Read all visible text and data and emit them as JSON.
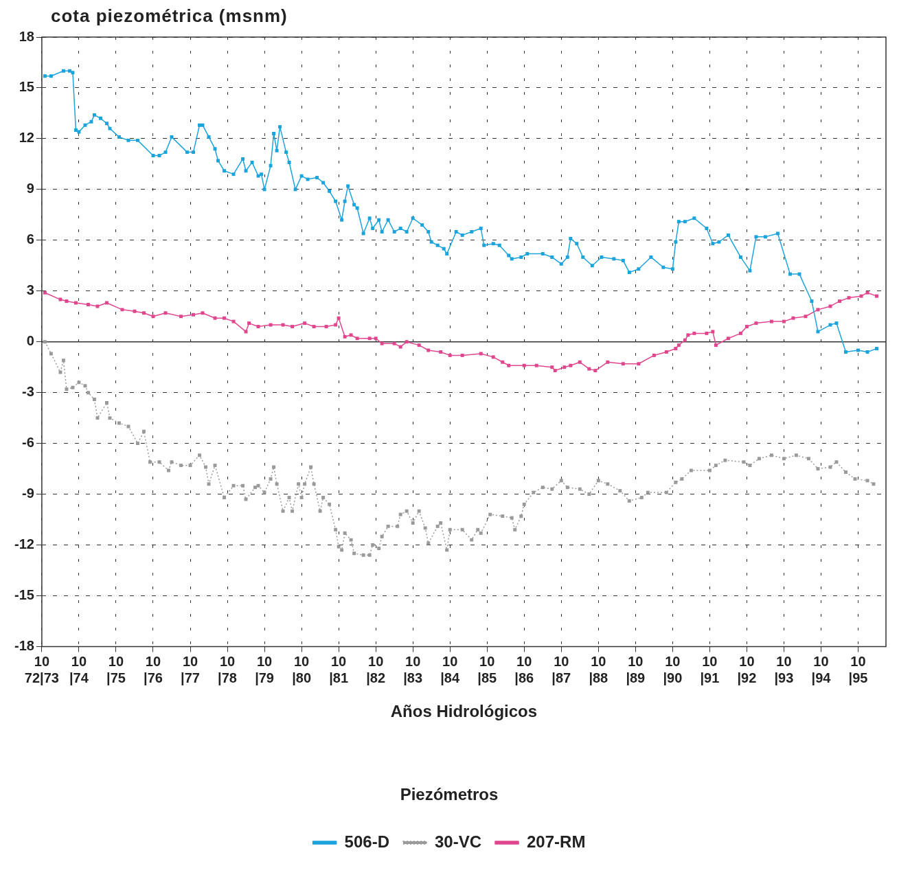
{
  "chart_data": {
    "type": "line",
    "ylabel": "cota piezométrica (msnm)",
    "xlabel": "Años Hidrológicos",
    "legend_title": "Piezómetros",
    "legend": "bottom",
    "grid": true,
    "marker": "square",
    "line_style": "solid",
    "xlim": [
      "1972-10",
      "1995-07"
    ],
    "xticks": [
      {
        "value": "1972-10",
        "label": "10\n72|73"
      },
      {
        "value": "1973-10",
        "label": "10\n|74"
      },
      {
        "value": "1974-10",
        "label": "10\n|75"
      },
      {
        "value": "1975-10",
        "label": "10\n|76"
      },
      {
        "value": "1976-10",
        "label": "10\n|77"
      },
      {
        "value": "1977-10",
        "label": "10\n|78"
      },
      {
        "value": "1978-10",
        "label": "10\n|79"
      },
      {
        "value": "1979-10",
        "label": "10\n|80"
      },
      {
        "value": "1980-10",
        "label": "10\n|81"
      },
      {
        "value": "1981-10",
        "label": "10\n|82"
      },
      {
        "value": "1982-10",
        "label": "10\n|83"
      },
      {
        "value": "1983-10",
        "label": "10\n|84"
      },
      {
        "value": "1984-10",
        "label": "10\n|85"
      },
      {
        "value": "1985-10",
        "label": "10\n|86"
      },
      {
        "value": "1986-10",
        "label": "10\n|87"
      },
      {
        "value": "1987-10",
        "label": "10\n|88"
      },
      {
        "value": "1988-10",
        "label": "10\n|89"
      },
      {
        "value": "1989-10",
        "label": "10\n|90"
      },
      {
        "value": "1990-10",
        "label": "10\n|91"
      },
      {
        "value": "1991-10",
        "label": "10\n|92"
      },
      {
        "value": "1992-10",
        "label": "10\n|93"
      },
      {
        "value": "1993-10",
        "label": "10\n|94"
      },
      {
        "value": "1994-10",
        "label": "10\n|95"
      }
    ],
    "ylim": [
      -18,
      18
    ],
    "yticks": [
      -18,
      -15,
      -12,
      -9,
      -6,
      -3,
      0,
      3,
      6,
      9,
      12,
      15,
      18
    ],
    "ref_lines": [
      {
        "axis": "y",
        "value": 0,
        "color": "#333333",
        "line_style": "solid"
      }
    ],
    "series": [
      {
        "name": "506-D",
        "color": "#1ba3dc",
        "x": [
          "1972-11",
          "1973-01",
          "1973-05",
          "1973-07",
          "1973-08",
          "1973-09",
          "1973-10",
          "1973-12",
          "1974-02",
          "1974-03",
          "1974-05",
          "1974-07",
          "1974-08",
          "1974-11",
          "1975-02",
          "1975-05",
          "1975-10",
          "1975-12",
          "1976-02",
          "1976-04",
          "1976-09",
          "1976-11",
          "1977-01",
          "1977-02",
          "1977-04",
          "1977-06",
          "1977-07",
          "1977-09",
          "1977-12",
          "1978-03",
          "1978-04",
          "1978-06",
          "1978-08",
          "1978-09",
          "1978-10",
          "1978-12",
          "1979-01",
          "1979-02",
          "1979-03",
          "1979-05",
          "1979-06",
          "1979-08",
          "1979-10",
          "1979-12",
          "1980-03",
          "1980-05",
          "1980-07",
          "1980-09",
          "1980-11",
          "1980-12",
          "1981-01",
          "1981-03",
          "1981-04",
          "1981-06",
          "1981-08",
          "1981-09",
          "1981-11",
          "1981-12",
          "1982-02",
          "1982-04",
          "1982-06",
          "1982-08",
          "1982-10",
          "1983-01",
          "1983-03",
          "1983-04",
          "1983-06",
          "1983-08",
          "1983-09",
          "1983-12",
          "1984-02",
          "1984-05",
          "1984-08",
          "1984-09",
          "1984-12",
          "1985-02",
          "1985-05",
          "1985-06",
          "1985-09",
          "1985-11",
          "1986-04",
          "1986-07",
          "1986-10",
          "1986-12",
          "1987-01",
          "1987-03",
          "1987-05",
          "1987-08",
          "1987-11",
          "1988-03",
          "1988-06",
          "1988-08",
          "1988-11",
          "1989-03",
          "1989-07",
          "1989-10",
          "1989-11",
          "1989-12",
          "1990-02",
          "1990-05",
          "1990-09",
          "1990-11",
          "1991-01",
          "1991-04",
          "1991-08",
          "1991-11",
          "1992-01",
          "1992-04",
          "1992-08",
          "1992-12",
          "1993-03",
          "1993-07",
          "1993-09",
          "1994-01",
          "1994-03",
          "1994-06",
          "1994-10",
          "1995-01",
          "1995-04"
        ],
        "values": [
          15.7,
          15.7,
          16.0,
          16.0,
          15.9,
          12.5,
          12.4,
          12.8,
          13.0,
          13.4,
          13.2,
          12.9,
          12.6,
          12.1,
          11.9,
          11.9,
          11.0,
          11.0,
          11.2,
          12.1,
          11.2,
          11.2,
          12.8,
          12.8,
          12.1,
          11.4,
          10.7,
          10.1,
          9.9,
          10.8,
          10.1,
          10.6,
          9.8,
          9.9,
          9.0,
          10.4,
          12.3,
          11.3,
          12.7,
          11.2,
          10.6,
          9.0,
          9.8,
          9.6,
          9.7,
          9.4,
          8.9,
          8.3,
          7.2,
          8.3,
          9.2,
          8.1,
          7.9,
          6.4,
          7.3,
          6.7,
          7.2,
          6.5,
          7.2,
          6.5,
          6.7,
          6.5,
          7.3,
          6.9,
          6.5,
          5.9,
          5.7,
          5.5,
          5.2,
          6.5,
          6.3,
          6.5,
          6.7,
          5.7,
          5.8,
          5.7,
          5.1,
          4.9,
          5.0,
          5.2,
          5.2,
          5.0,
          4.6,
          5.0,
          6.1,
          5.8,
          5.0,
          4.5,
          5.0,
          4.9,
          4.8,
          4.1,
          4.3,
          5.0,
          4.4,
          4.3,
          5.9,
          7.1,
          7.1,
          7.3,
          6.7,
          5.8,
          5.9,
          6.3,
          5.0,
          4.2,
          6.2,
          6.2,
          6.4,
          4.0,
          4.0,
          2.4,
          0.6,
          1.0,
          1.1,
          -0.6,
          -0.5,
          -0.6,
          -0.4
        ]
      },
      {
        "name": "30-VC",
        "color": "#9a9a9a",
        "line_style": "dotted",
        "x": [
          "1972-11",
          "1973-01",
          "1973-04",
          "1973-05",
          "1973-06",
          "1973-08",
          "1973-10",
          "1973-12",
          "1974-01",
          "1974-03",
          "1974-04",
          "1974-07",
          "1974-08",
          "1974-11",
          "1975-02",
          "1975-05",
          "1975-07",
          "1975-09",
          "1975-12",
          "1976-03",
          "1976-04",
          "1976-07",
          "1976-10",
          "1977-01",
          "1977-03",
          "1977-04",
          "1977-06",
          "1977-09",
          "1977-12",
          "1978-03",
          "1978-04",
          "1978-07",
          "1978-08",
          "1978-10",
          "1978-12",
          "1979-01",
          "1979-02",
          "1979-04",
          "1979-06",
          "1979-07",
          "1979-09",
          "1979-10",
          "1979-11",
          "1980-01",
          "1980-02",
          "1980-04",
          "1980-05",
          "1980-07",
          "1980-09",
          "1980-10",
          "1980-11",
          "1980-12",
          "1981-02",
          "1981-03",
          "1981-06",
          "1981-08",
          "1981-09",
          "1981-11",
          "1981-12",
          "1982-02",
          "1982-05",
          "1982-06",
          "1982-08",
          "1982-10",
          "1982-12",
          "1983-02",
          "1983-03",
          "1983-06",
          "1983-07",
          "1983-09",
          "1983-10",
          "1984-02",
          "1984-05",
          "1984-07",
          "1984-08",
          "1984-11",
          "1985-03",
          "1985-06",
          "1985-07",
          "1985-09",
          "1985-10",
          "1986-01",
          "1986-04",
          "1986-07",
          "1986-10",
          "1986-12",
          "1987-04",
          "1987-07",
          "1987-10",
          "1988-01",
          "1988-05",
          "1988-08",
          "1988-12",
          "1989-02",
          "1989-08",
          "1989-11",
          "1990-01",
          "1990-04",
          "1990-10",
          "1990-12",
          "1991-03",
          "1991-09",
          "1991-11",
          "1992-02",
          "1992-06",
          "1992-10",
          "1993-02",
          "1993-06",
          "1993-09",
          "1994-01",
          "1994-03",
          "1994-06",
          "1994-09",
          "1995-01",
          "1995-03"
        ],
        "values": [
          0,
          -0.7,
          -1.8,
          -1.1,
          -2.8,
          -2.7,
          -2.4,
          -2.6,
          -3.0,
          -3.4,
          -4.5,
          -3.6,
          -4.5,
          -4.8,
          -5.0,
          -6.0,
          -5.3,
          -7.1,
          -7.1,
          -7.6,
          -7.1,
          -7.3,
          -7.3,
          -6.7,
          -7.4,
          -8.4,
          -7.3,
          -9.2,
          -8.5,
          -8.5,
          -9.3,
          -8.6,
          -8.5,
          -8.9,
          -8.1,
          -7.4,
          -8.4,
          -10.0,
          -9.2,
          -10.0,
          -8.4,
          -9.2,
          -8.4,
          -7.4,
          -8.4,
          -10.0,
          -9.2,
          -9.6,
          -11.1,
          -12.1,
          -12.3,
          -11.3,
          -11.7,
          -12.5,
          -12.6,
          -12.6,
          -12.0,
          -12.2,
          -11.5,
          -10.9,
          -10.9,
          -10.2,
          -10.0,
          -10.7,
          -10.0,
          -11.0,
          -11.9,
          -10.9,
          -10.7,
          -12.3,
          -11.1,
          -11.1,
          -11.7,
          -11.1,
          -11.3,
          -10.2,
          -10.3,
          -10.4,
          -11.1,
          -10.3,
          -9.6,
          -8.9,
          -8.6,
          -8.7,
          -8.2,
          -8.6,
          -8.7,
          -9.0,
          -8.2,
          -8.4,
          -8.8,
          -9.4,
          -9.2,
          -8.9,
          -8.9,
          -8.3,
          -8.1,
          -7.6,
          -7.6,
          -7.3,
          -7.0,
          -7.1,
          -7.3,
          -6.9,
          -6.7,
          -6.9,
          -6.7,
          -6.9,
          -7.5,
          -7.4,
          -7.1,
          -7.7,
          -8.1,
          -8.2,
          -8.4
        ]
      },
      {
        "name": "207-RM",
        "color": "#e0468e",
        "x": [
          "1972-11",
          "1973-04",
          "1973-06",
          "1973-09",
          "1974-01",
          "1974-04",
          "1974-07",
          "1974-12",
          "1975-04",
          "1975-07",
          "1975-10",
          "1976-02",
          "1976-07",
          "1976-11",
          "1977-02",
          "1977-06",
          "1977-09",
          "1977-12",
          "1978-04",
          "1978-05",
          "1978-08",
          "1978-12",
          "1979-04",
          "1979-07",
          "1979-11",
          "1980-02",
          "1980-06",
          "1980-09",
          "1980-10",
          "1980-12",
          "1981-02",
          "1981-04",
          "1981-08",
          "1981-10",
          "1981-12",
          "1982-04",
          "1982-06",
          "1982-08",
          "1982-12",
          "1983-03",
          "1983-07",
          "1983-10",
          "1984-02",
          "1984-08",
          "1984-12",
          "1985-03",
          "1985-05",
          "1985-10",
          "1986-02",
          "1986-07",
          "1986-08",
          "1986-11",
          "1987-01",
          "1987-04",
          "1987-07",
          "1987-09",
          "1988-01",
          "1988-06",
          "1988-11",
          "1989-04",
          "1989-08",
          "1989-11",
          "1989-12",
          "1990-02",
          "1990-03",
          "1990-05",
          "1990-09",
          "1990-11",
          "1990-12",
          "1991-04",
          "1991-08",
          "1991-10",
          "1992-01",
          "1992-06",
          "1992-10",
          "1993-01",
          "1993-05",
          "1993-09",
          "1994-01",
          "1994-04",
          "1994-07",
          "1994-11",
          "1995-01",
          "1995-04"
        ],
        "values": [
          2.9,
          2.5,
          2.4,
          2.3,
          2.2,
          2.1,
          2.3,
          1.9,
          1.8,
          1.7,
          1.5,
          1.7,
          1.5,
          1.6,
          1.7,
          1.4,
          1.4,
          1.2,
          0.6,
          1.1,
          0.9,
          1.0,
          1.0,
          0.9,
          1.1,
          0.9,
          0.9,
          1.0,
          1.4,
          0.3,
          0.4,
          0.2,
          0.2,
          0.2,
          -0.1,
          -0.1,
          -0.3,
          0,
          -0.2,
          -0.5,
          -0.6,
          -0.8,
          -0.8,
          -0.7,
          -0.9,
          -1.2,
          -1.4,
          -1.4,
          -1.4,
          -1.5,
          -1.7,
          -1.5,
          -1.4,
          -1.2,
          -1.6,
          -1.7,
          -1.2,
          -1.3,
          -1.3,
          -0.8,
          -0.6,
          -0.4,
          -0.2,
          0.1,
          0.4,
          0.5,
          0.5,
          0.6,
          -0.2,
          0.2,
          0.5,
          0.9,
          1.1,
          1.2,
          1.2,
          1.4,
          1.5,
          1.9,
          2.1,
          2.4,
          2.6,
          2.7,
          2.9,
          2.7
        ]
      }
    ]
  }
}
